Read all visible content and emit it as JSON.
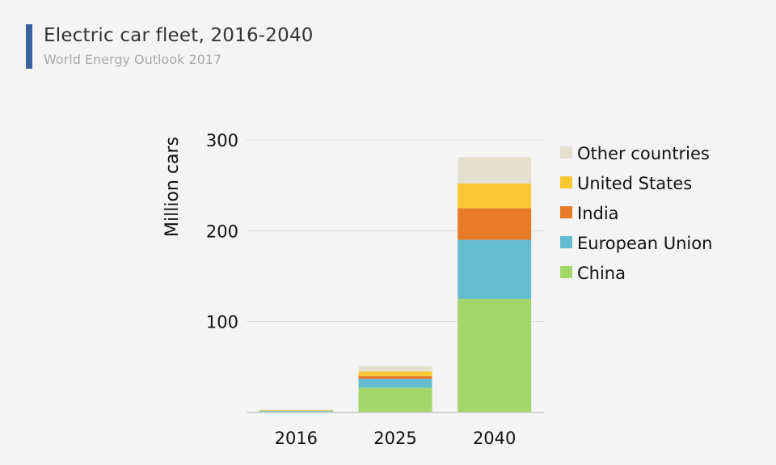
{
  "header": {
    "title": "Electric car fleet, 2016-2040",
    "subtitle": "World Energy Outlook 2017"
  },
  "colors": {
    "accent_bar": "#3a60a0",
    "grid": "#dddddd",
    "axis": "#c8c8c8"
  },
  "chart_data": {
    "type": "bar",
    "stacked": true,
    "categories": [
      "2016",
      "2025",
      "2040"
    ],
    "series": [
      {
        "name": "China",
        "color": "#a3d66b",
        "values": [
          1.0,
          27,
          125
        ]
      },
      {
        "name": "European Union",
        "color": "#66bcd1",
        "values": [
          0.8,
          10,
          65
        ]
      },
      {
        "name": "India",
        "color": "#e87b27",
        "values": [
          0.1,
          3,
          35
        ]
      },
      {
        "name": "United States",
        "color": "#f9c834",
        "values": [
          0.6,
          5,
          27
        ]
      },
      {
        "name": "Other countries",
        "color": "#e3e0d0",
        "values": [
          0.5,
          6,
          29
        ]
      }
    ],
    "yticks": [
      100,
      200,
      300
    ],
    "ylim": [
      0,
      300
    ],
    "ylabel": "Million cars",
    "xlabel": "",
    "grid": true,
    "legend_position": "right",
    "legend_order": [
      "Other countries",
      "United States",
      "India",
      "European Union",
      "China"
    ]
  }
}
